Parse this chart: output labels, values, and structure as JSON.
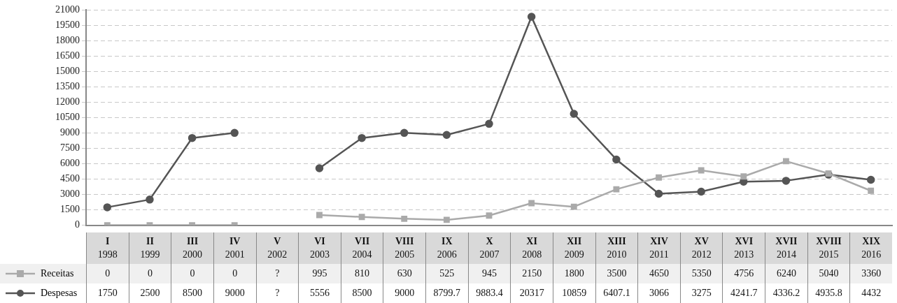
{
  "chart_data": {
    "type": "line",
    "categories": [
      "I\n1998",
      "II\n1999",
      "III\n2000",
      "IV\n2001",
      "V\n2002",
      "VI\n2003",
      "VII\n2004",
      "VIII\n2005",
      "IX\n2006",
      "X\n2007",
      "XI\n2008",
      "XII\n2009",
      "XIII\n2010",
      "XIV\n2011",
      "XV\n2012",
      "XVI\n2013",
      "XVII\n2014",
      "XVIII\n2015",
      "XIX\n2016"
    ],
    "series": [
      {
        "name": "Receitas",
        "color": "#aaaaaa",
        "marker": "square",
        "values": [
          0,
          0,
          0,
          0,
          null,
          995,
          810,
          630,
          525,
          945,
          2150,
          1800,
          3500,
          4650,
          5350,
          4756,
          6240,
          5040,
          3360
        ],
        "value_labels": [
          "0",
          "0",
          "0",
          "0",
          "?",
          "995",
          "810",
          "630",
          "525",
          "945",
          "2150",
          "1800",
          "3500",
          "4650",
          "5350",
          "4756",
          "6240",
          "5040",
          "3360"
        ]
      },
      {
        "name": "Despesas",
        "color": "#555555",
        "marker": "circle",
        "values": [
          1750,
          2500,
          8500,
          9000,
          null,
          5556,
          8500,
          9000,
          8799.7,
          9883.4,
          20317,
          10859,
          6407.1,
          3066,
          3275,
          4241.7,
          4336.2,
          4935.8,
          4432
        ],
        "value_labels": [
          "1750",
          "2500",
          "8500",
          "9000",
          "?",
          "5556",
          "8500",
          "9000",
          "8799.7",
          "9883.4",
          "20317",
          "10859",
          "6407.1",
          "3066",
          "3275",
          "4241.7",
          "4336.2",
          "4935.8",
          "4432"
        ]
      }
    ],
    "ylim": [
      0,
      21000
    ],
    "yticks": [
      0,
      1500,
      3000,
      4500,
      6000,
      7500,
      9000,
      10500,
      12000,
      13500,
      15000,
      16500,
      18000,
      19500,
      21000
    ],
    "grid": "y",
    "legend": "bottom left",
    "line_style": "solid"
  }
}
